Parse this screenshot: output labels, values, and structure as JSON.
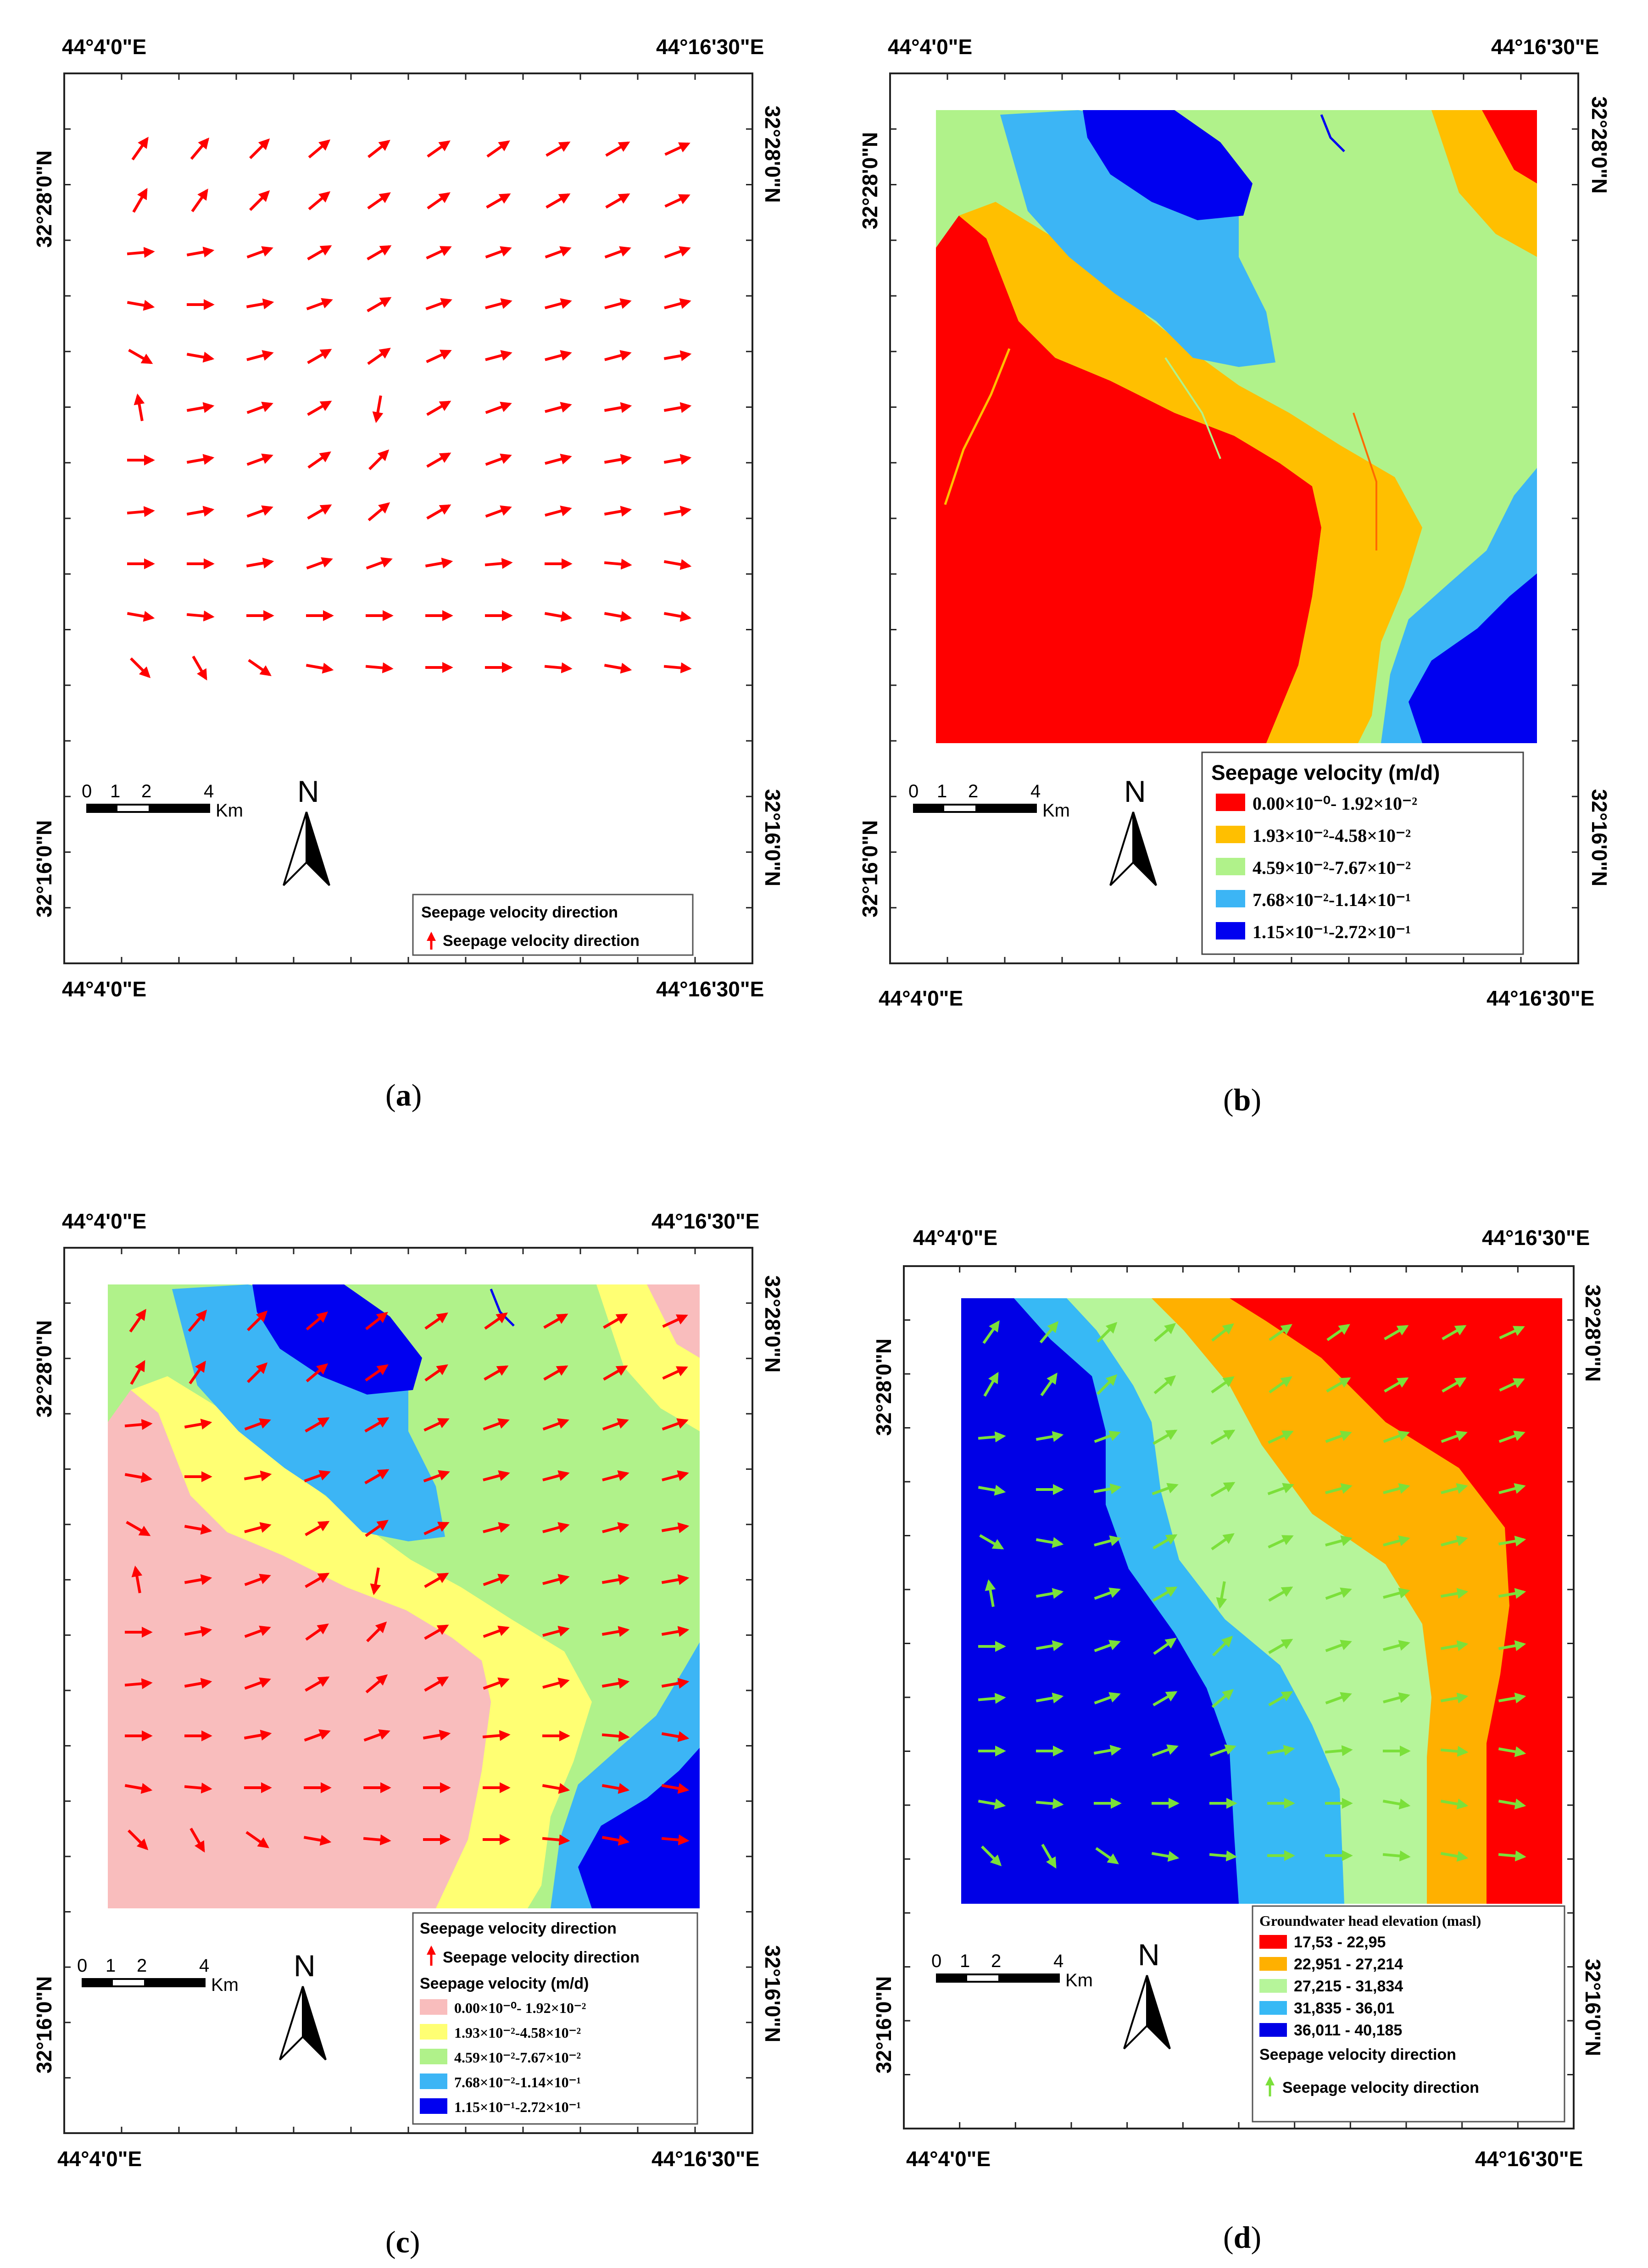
{
  "labels": {
    "lon_west": "44°4'0\"E",
    "lon_east": "44°16'30\"E",
    "lat_north": "32°28'0\"N",
    "lat_south": "32°16'0\"N",
    "scale_km": "Km",
    "scale_ticks": [
      "0",
      "1",
      "2",
      "4"
    ],
    "north": "N"
  },
  "captions": [
    "a",
    "b",
    "c",
    "d"
  ],
  "legends": {
    "direction_title": "Seepage velocity direction",
    "direction_item": "Seepage velocity direction",
    "velocity_title_b": "Seepage velocity (m/d)",
    "velocity_title_c": "Seepage velocity (m/d)",
    "velocity_classes": [
      {
        "label": "0.00×10⁻⁰- 1.92×10⁻²",
        "color_b": "#ff0000",
        "color_c": "#f9bdbd"
      },
      {
        "label": "1.93×10⁻²-4.58×10⁻²",
        "color_b": "#ffbf00",
        "color_c": "#ffff73"
      },
      {
        "label": "4.59×10⁻²-7.67×10⁻²",
        "color_b": "#b0f28a",
        "color_c": "#b0f28a"
      },
      {
        "label": "7.68×10⁻²-1.14×10⁻¹",
        "color_b": "#3cb5f5",
        "color_c": "#3cb5f5"
      },
      {
        "label": "1.15×10⁻¹-2.72×10⁻¹",
        "color_b": "#0000f0",
        "color_c": "#0000f0"
      }
    ],
    "head_title": "Groundwater head elevation (masl)",
    "head_classes": [
      {
        "label": "17,53 - 22,95",
        "color": "#ff0000"
      },
      {
        "label": "22,951 - 27,214",
        "color": "#ffb000"
      },
      {
        "label": "27,215 - 31,834",
        "color": "#b6f59a"
      },
      {
        "label": "31,835 - 36,01",
        "color": "#37b9f5"
      },
      {
        "label": "36,011 - 40,185",
        "color": "#0000e6"
      }
    ]
  },
  "colors": {
    "arrow_red": "#ff0000",
    "arrow_green": "#7be03a"
  }
}
